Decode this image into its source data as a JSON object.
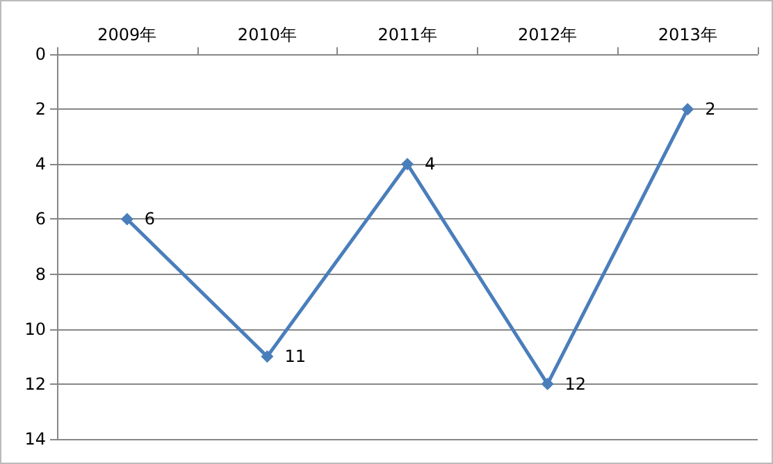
{
  "chart_data": {
    "type": "line",
    "categories": [
      "2009年",
      "2010年",
      "2011年",
      "2012年",
      "2013年"
    ],
    "series": [
      {
        "color": "#4a7ebb",
        "values": [
          6,
          11,
          4,
          12,
          2
        ]
      }
    ],
    "ylim": [
      14,
      0
    ],
    "yticks": [
      0,
      2,
      4,
      6,
      8,
      10,
      12,
      14
    ],
    "grid": "y",
    "marker": "diamond",
    "line_style": "solid",
    "data_labels": true
  }
}
